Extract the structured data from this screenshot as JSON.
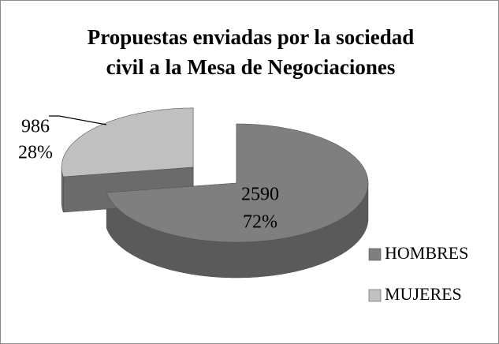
{
  "chart_data": {
    "type": "pie",
    "title": [
      "Propuestas enviadas por la sociedad",
      "civil a la Mesa de Negociaciones"
    ],
    "categories": [
      "HOMBRES",
      "MUJERES"
    ],
    "values": [
      2590,
      986
    ],
    "percentages": [
      72,
      28
    ],
    "percentage_labels": [
      "72%",
      "28%"
    ],
    "colors": [
      "#7f7f7f",
      "#c0c0c0"
    ],
    "legend": "right"
  }
}
